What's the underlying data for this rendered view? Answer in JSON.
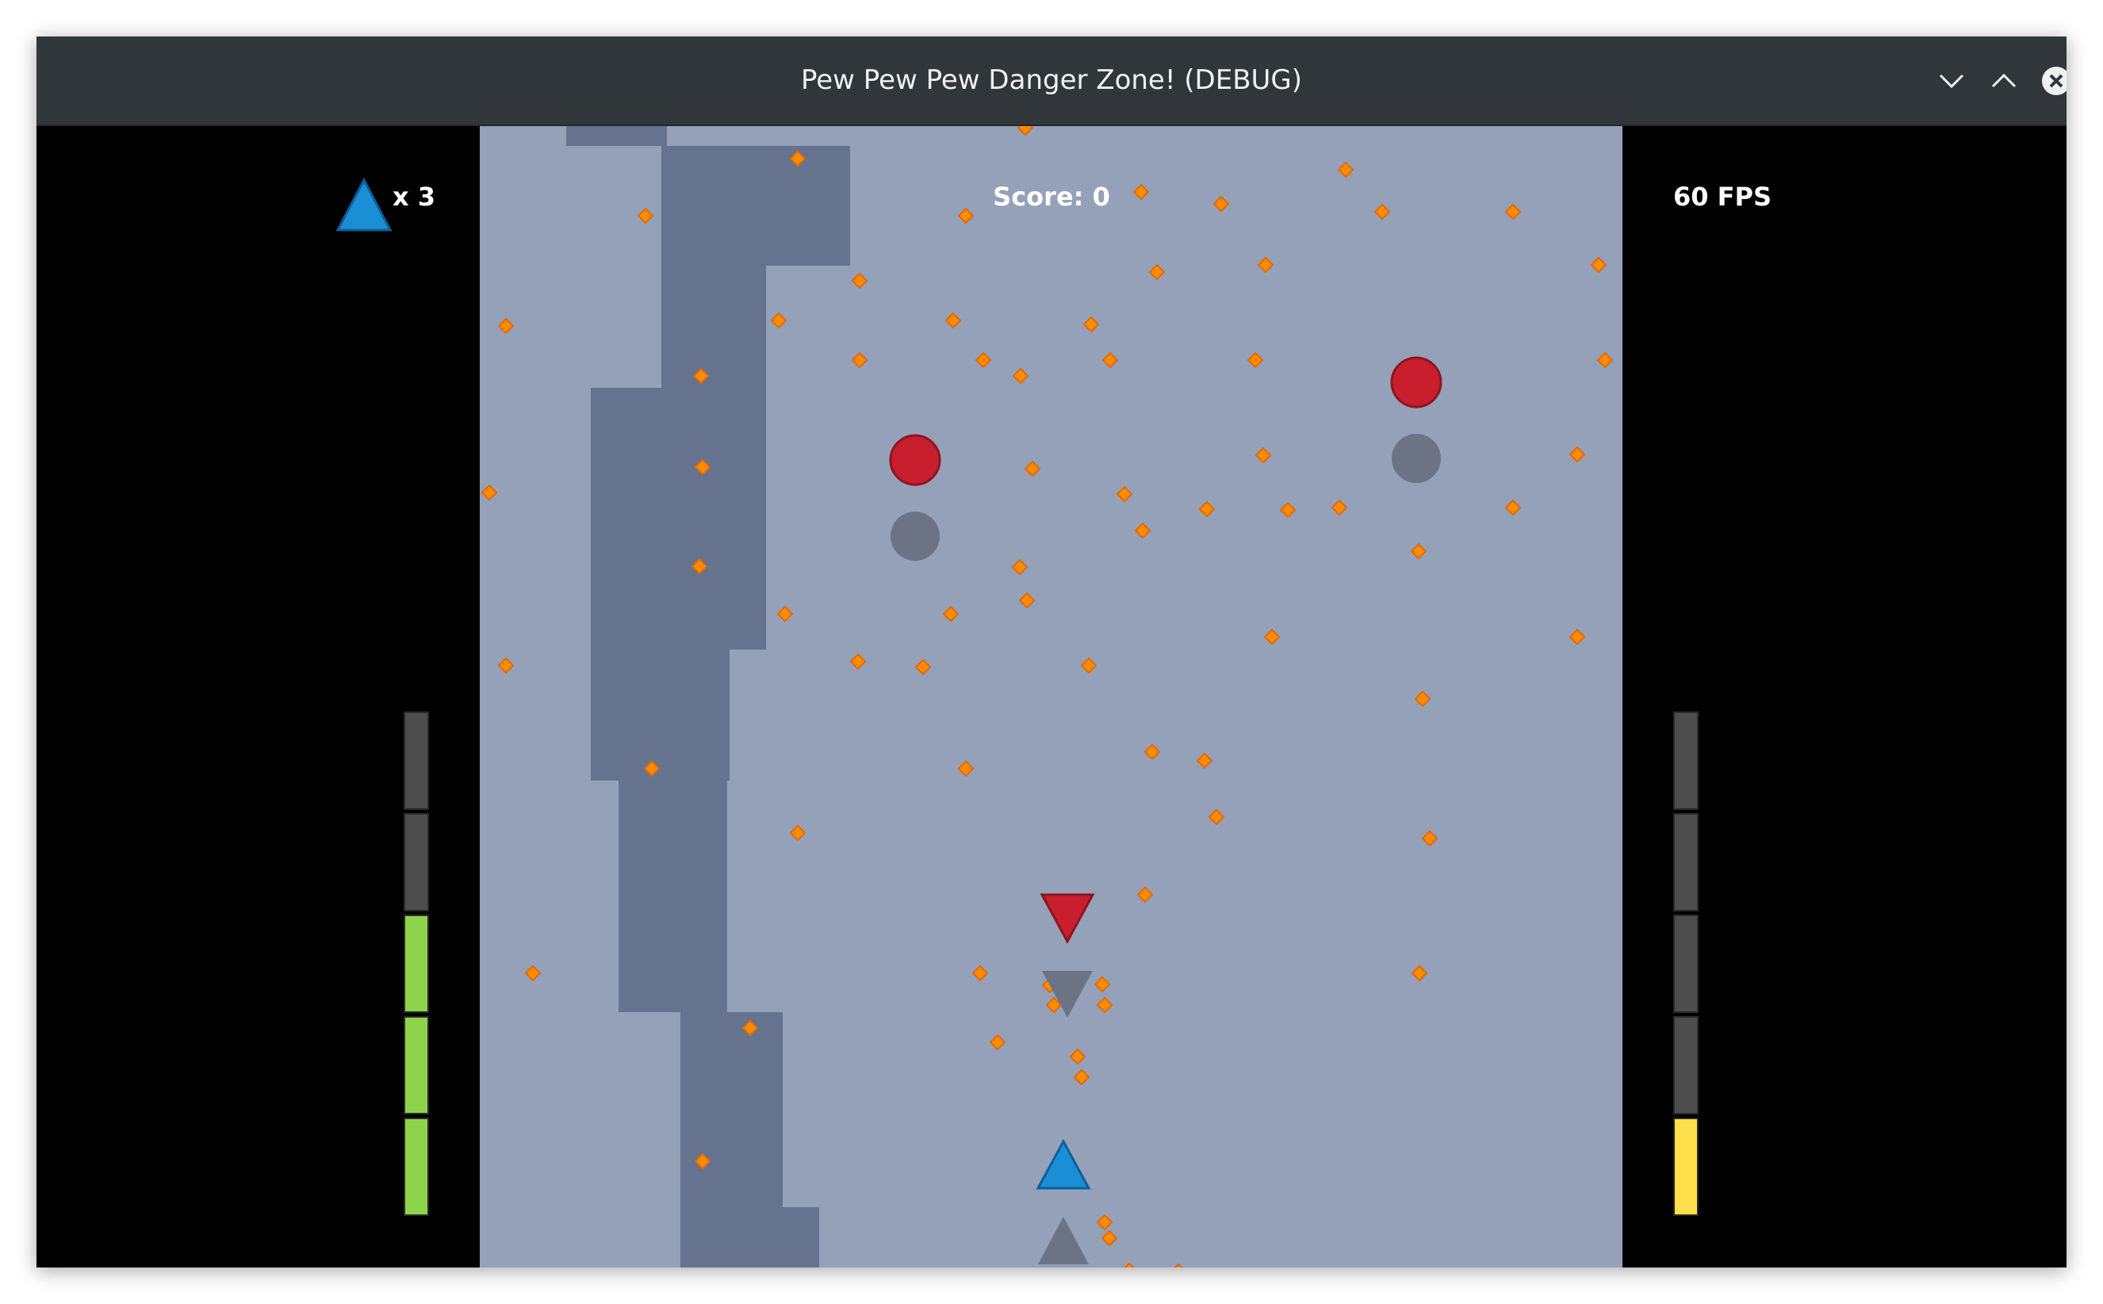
{
  "window": {
    "title": "Pew Pew Pew Danger Zone! (DEBUG)",
    "controls": [
      {
        "name": "minimize-button",
        "icon": "chevron-down-icon"
      },
      {
        "name": "maximize-button",
        "icon": "chevron-up-icon"
      },
      {
        "name": "close-button",
        "icon": "close-icon"
      }
    ]
  },
  "hud": {
    "lives_label": "x 3",
    "score_label": "Score: 0",
    "fps_label": "60 FPS",
    "player_icon": "blue-triangle-icon"
  },
  "meters": {
    "left": {
      "segments": 5,
      "filled": 3,
      "fill_color": "#8ed44a",
      "empty_color": "#4d4d4d"
    },
    "right": {
      "segments": 5,
      "filled": 1,
      "fill_color": "#ffe04a",
      "empty_color": "#4d4d4d"
    }
  },
  "colors": {
    "playfield": "#94a1b8",
    "terrain": "#66738f",
    "bullet": "#ff8c00",
    "enemy": "#c81e2d",
    "enemy_shadow": "#6b7385",
    "player": "#1a8fd6",
    "side_panel": "#000000"
  }
}
